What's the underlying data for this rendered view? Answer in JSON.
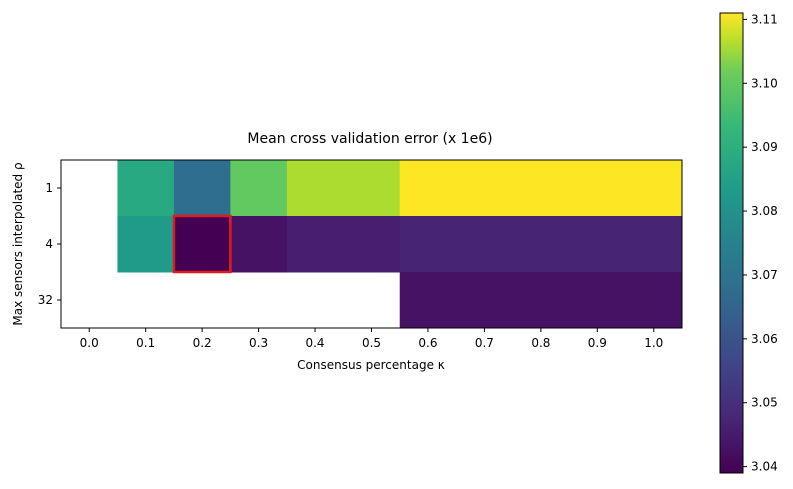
{
  "chart_data": {
    "type": "heatmap",
    "title": "Mean cross validation error (x 1e6)",
    "xlabel": "Consensus percentage κ",
    "ylabel": "Max sensors interpolated ρ",
    "x_categories": [
      "0.0",
      "0.1",
      "0.2",
      "0.3",
      "0.4",
      "0.5",
      "0.6",
      "0.7",
      "0.8",
      "0.9",
      "1.0"
    ],
    "y_categories": [
      "1",
      "4",
      "32"
    ],
    "values": [
      [
        null,
        3.088,
        3.068,
        3.1,
        3.106,
        3.106,
        3.111,
        3.111,
        3.111,
        3.111,
        3.111
      ],
      [
        null,
        3.083,
        3.039,
        3.043,
        3.046,
        3.046,
        3.047,
        3.047,
        3.047,
        3.047,
        3.047
      ],
      [
        null,
        null,
        null,
        null,
        null,
        null,
        3.043,
        3.043,
        3.043,
        3.043,
        3.043
      ]
    ],
    "highlight": {
      "x": "0.2",
      "y": "4",
      "color": "#e31a1c"
    },
    "colormap": "viridis",
    "colorbar": {
      "min": 3.039,
      "max": 3.111,
      "ticks": [
        "3.04",
        "3.05",
        "3.06",
        "3.07",
        "3.08",
        "3.09",
        "3.10",
        "3.11"
      ]
    }
  }
}
